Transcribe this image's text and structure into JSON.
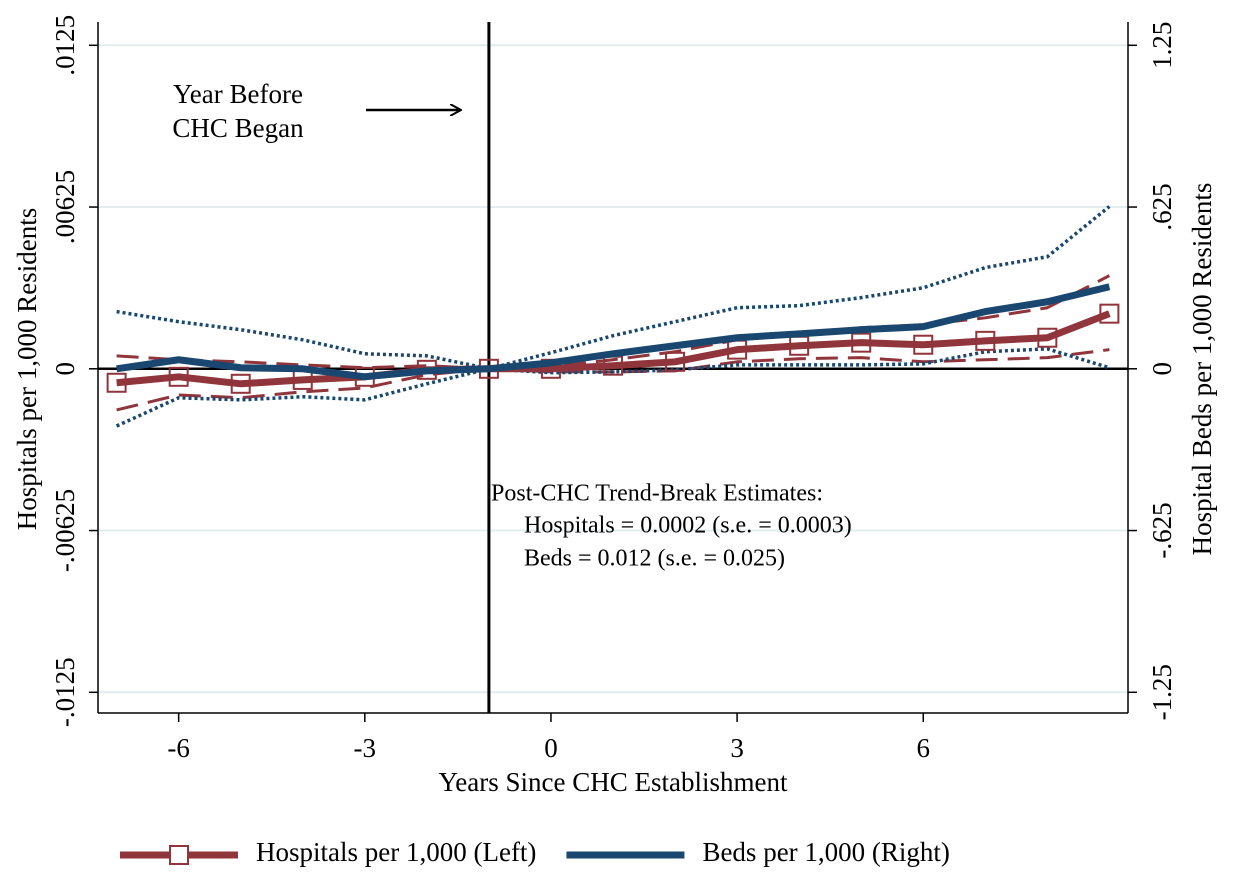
{
  "chart_data": {
    "type": "line",
    "x_label": "Years Since CHC Establishment",
    "y_label": "Hospitals per 1,000 Residents",
    "y2_label": "Hospital Beds per 1,000 Residents",
    "x": [
      -7,
      -6,
      -5,
      -4,
      -3,
      -2,
      -1,
      0,
      1,
      2,
      3,
      4,
      5,
      6,
      7,
      8,
      9
    ],
    "xlim": [
      -7.3,
      9.3
    ],
    "xticks": [
      -6,
      -3,
      0,
      3,
      6
    ],
    "ylim": [
      -0.0133,
      0.0134
    ],
    "yticks": [
      {
        "value": -0.0125,
        "label": "-.0125"
      },
      {
        "value": -0.00625,
        "label": "-.00625"
      },
      0,
      {
        "value": 0.00625,
        "label": ".00625"
      },
      {
        "value": 0.0125,
        "label": ".0125"
      }
    ],
    "y2lim": [
      -1.33,
      1.34
    ],
    "y2ticks": [
      {
        "value": -1.25,
        "label": "-1.25"
      },
      {
        "value": -0.625,
        "label": "-.625"
      },
      0,
      {
        "value": 0.625,
        "label": ".625"
      },
      {
        "value": 1.25,
        "label": "1.25"
      }
    ],
    "grid": true,
    "vline": -1,
    "series": [
      {
        "color": "#90353b",
        "style": "dashed",
        "values": [
          0.0005,
          0.00035,
          0.00027,
          0.00015,
          4e-05,
          0.00012,
          0,
          8e-05,
          0.00035,
          0.00066,
          0.00112,
          0.00135,
          0.00159,
          0.0017,
          0.00197,
          0.00236,
          0.0036
        ]
      },
      {
        "color": "#90353b",
        "style": "dashed",
        "values": [
          -0.00159,
          -0.00101,
          -0.00112,
          -0.00089,
          -0.00074,
          -0.00023,
          0,
          -0.00012,
          -0.00012,
          -8e-05,
          0.00027,
          0.00039,
          0.00043,
          0.00027,
          0.00035,
          0.00043,
          0.00074
        ]
      },
      {
        "color": "#1a476f",
        "style": "dotted",
        "axis": "y2",
        "values": [
          0.221,
          0.182,
          0.151,
          0.112,
          0.058,
          0.05,
          0,
          0.062,
          0.128,
          0.182,
          0.236,
          0.244,
          0.275,
          0.313,
          0.391,
          0.433,
          0.627
        ]
      },
      {
        "color": "#1a476f",
        "style": "dotted",
        "axis": "y2",
        "values": [
          -0.221,
          -0.112,
          -0.12,
          -0.108,
          -0.12,
          -0.058,
          0,
          -0.015,
          -0.012,
          -0.004,
          0.015,
          0.015,
          0.015,
          0.019,
          0.066,
          0.077,
          0.004
        ]
      },
      {
        "name": "Hospitals per 1,000 (Left)",
        "color": "#90353b",
        "style": "solid",
        "marker": "square",
        "values": [
          -0.00054,
          -0.00031,
          -0.00058,
          -0.00043,
          -0.00031,
          -4e-05,
          0,
          0,
          0.00012,
          0.00027,
          0.00074,
          0.00089,
          0.00101,
          0.00093,
          0.00108,
          0.0012,
          0.00213
        ]
      },
      {
        "name": "Beds per 1,000 (Right)",
        "color": "#1a476f",
        "style": "solid",
        "axis": "y2",
        "values": [
          0,
          0.035,
          0.004,
          0,
          -0.031,
          -0.008,
          0,
          0.023,
          0.058,
          0.089,
          0.12,
          0.135,
          0.151,
          0.163,
          0.221,
          0.259,
          0.317
        ]
      }
    ],
    "annotations": {
      "arrow_text": [
        "Year Before",
        "CHC Began"
      ],
      "estimates": [
        "Post-CHC Trend-Break Estimates:",
        "Hospitals = 0.0002 (s.e. =  0.0003)",
        "Beds =  0.012 (s.e. =  0.025)"
      ]
    }
  }
}
